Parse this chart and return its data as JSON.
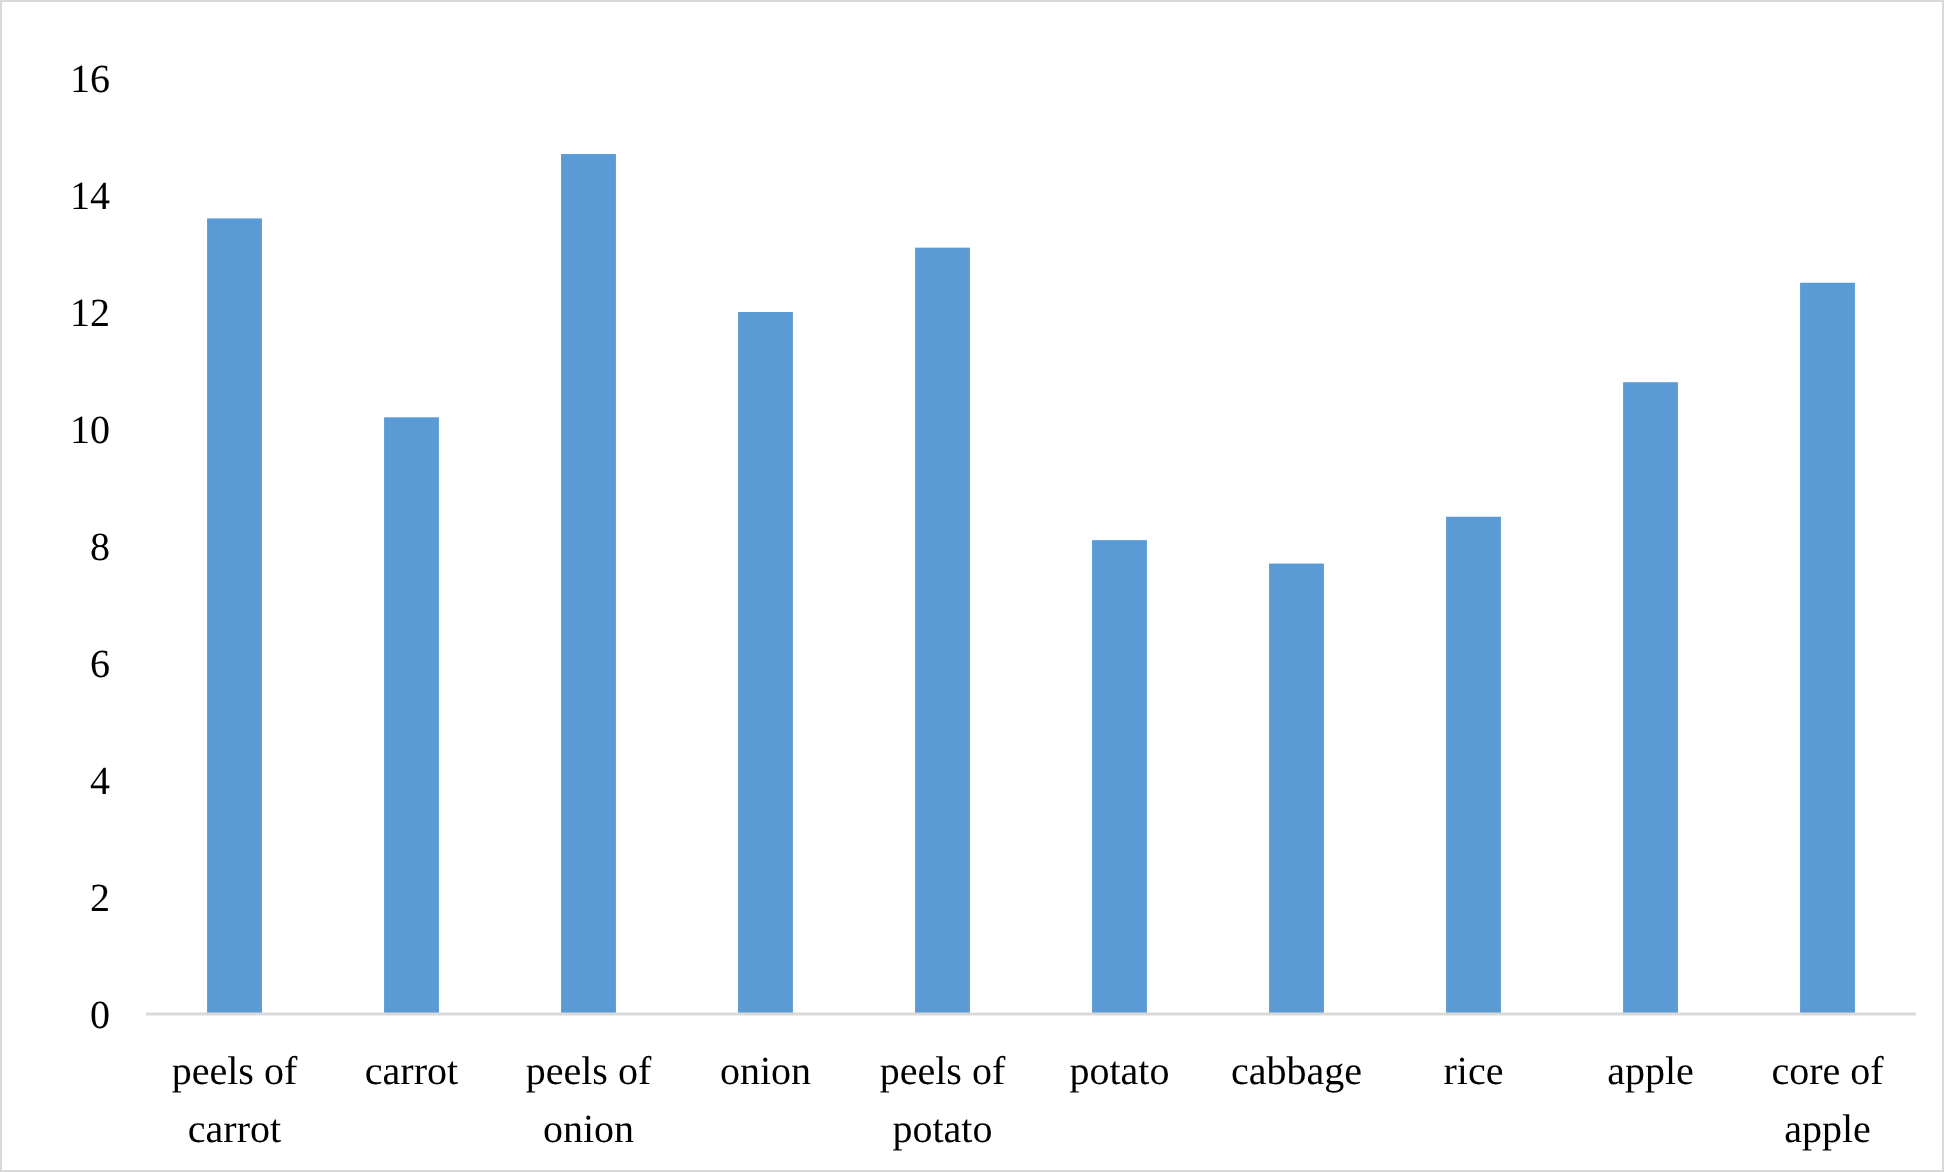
{
  "chart_data": {
    "type": "bar",
    "categories": [
      "peels of carrot",
      "carrot",
      "peels of onion",
      "onion",
      "peels of potato",
      "potato",
      "cabbage",
      "rice",
      "apple",
      "core of apple"
    ],
    "values": [
      13.6,
      10.2,
      14.7,
      12.0,
      13.1,
      8.1,
      7.7,
      8.5,
      10.8,
      12.5
    ],
    "color": "#5b9bd5",
    "ylim": [
      0,
      16
    ],
    "yticks": [
      0,
      2,
      4,
      6,
      8,
      10,
      12,
      14,
      16
    ],
    "grid": false
  }
}
